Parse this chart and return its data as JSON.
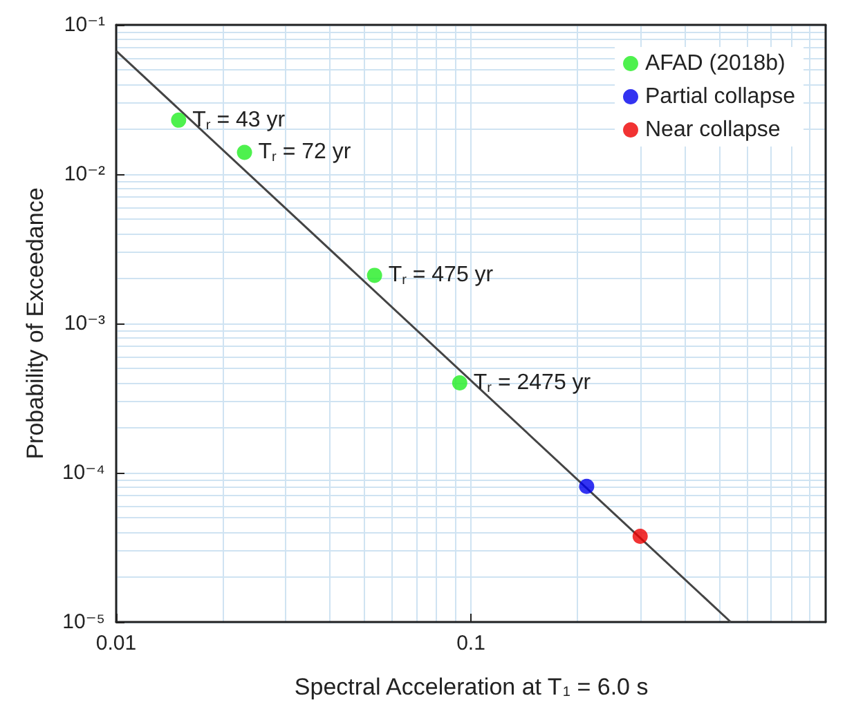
{
  "chart_data": {
    "type": "scatter",
    "xlabel": "Spectral Acceleration at T$_{1}$ = 6.0 s",
    "ylabel": "Probability of Exceedance",
    "series": [
      {
        "type": "line",
        "color": "#444444",
        "x": [
          0.01,
          0.54
        ],
        "values": [
          0.067,
          1e-05
        ],
        "marker": "none",
        "line_style": "solid"
      },
      {
        "name": "AFAD (2018b)",
        "color": "#22ee22",
        "x": [
          0.015,
          0.023,
          0.0535,
          0.093
        ],
        "values": [
          0.023,
          0.014,
          0.0021,
          0.0004
        ]
      },
      {
        "name": "Partial collapse",
        "color": "#0000ee",
        "x": [
          0.212
        ],
        "values": [
          8.1e-05
        ]
      },
      {
        "name": "Near collapse",
        "color": "#ee0000",
        "x": [
          0.3
        ],
        "values": [
          3.75e-05
        ]
      }
    ],
    "marker": "circle",
    "log": "xy",
    "grid": true,
    "legend": "top right",
    "xlim": [
      0.01,
      1
    ],
    "xticks": [
      0.01,
      0.1
    ],
    "ylim": [
      1e-05,
      0.1
    ],
    "yticks": [
      {
        "value": 1e-05,
        "label": "10⁻⁵"
      },
      {
        "value": 0.0001,
        "label": "10⁻⁴"
      },
      {
        "value": 0.001,
        "label": "10⁻³"
      },
      {
        "value": 0.01,
        "label": "10⁻²"
      },
      {
        "value": 0.1,
        "label": "10⁻¹"
      }
    ],
    "annotations": [
      {
        "text": "T$_{r}$ = 43 yr",
        "x": 0.015,
        "y": 0.023
      },
      {
        "text": "T$_{r}$ = 72 yr",
        "x": 0.023,
        "y": 0.014
      },
      {
        "text": "T$_{r}$ = 475 yr",
        "x": 0.0535,
        "y": 0.0021
      },
      {
        "text": "T$_{r}$ = 2475 yr",
        "x": 0.093,
        "y": 0.0004
      }
    ]
  }
}
